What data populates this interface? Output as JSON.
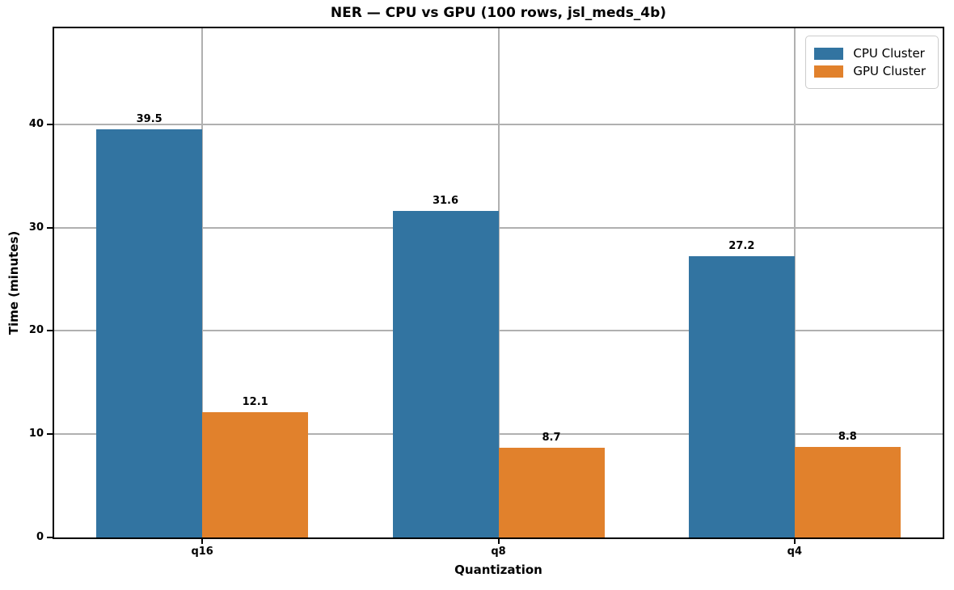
{
  "chart_data": {
    "type": "bar",
    "title": "NER — CPU vs GPU (100 rows, jsl_meds_4b)",
    "xlabel": "Quantization",
    "ylabel": "Time (minutes)",
    "categories": [
      "q16",
      "q8",
      "q4"
    ],
    "series": [
      {
        "name": "CPU Cluster",
        "color": "#3274a1",
        "values": [
          39.5,
          31.6,
          27.2
        ]
      },
      {
        "name": "GPU Cluster",
        "color": "#e1812c",
        "values": [
          12.1,
          8.7,
          8.8
        ]
      }
    ],
    "ylim": [
      0,
      49.3
    ],
    "yticks": [
      0,
      10,
      20,
      30,
      40
    ],
    "grid": true,
    "grid_axes": "both",
    "legend_position": "upper right",
    "value_labels": true,
    "style": {
      "grid_color": "#b0b0b0",
      "spine_color": "#000000",
      "background": "#ffffff",
      "legend_border": "#cccccc",
      "text_color": "#000000"
    }
  }
}
